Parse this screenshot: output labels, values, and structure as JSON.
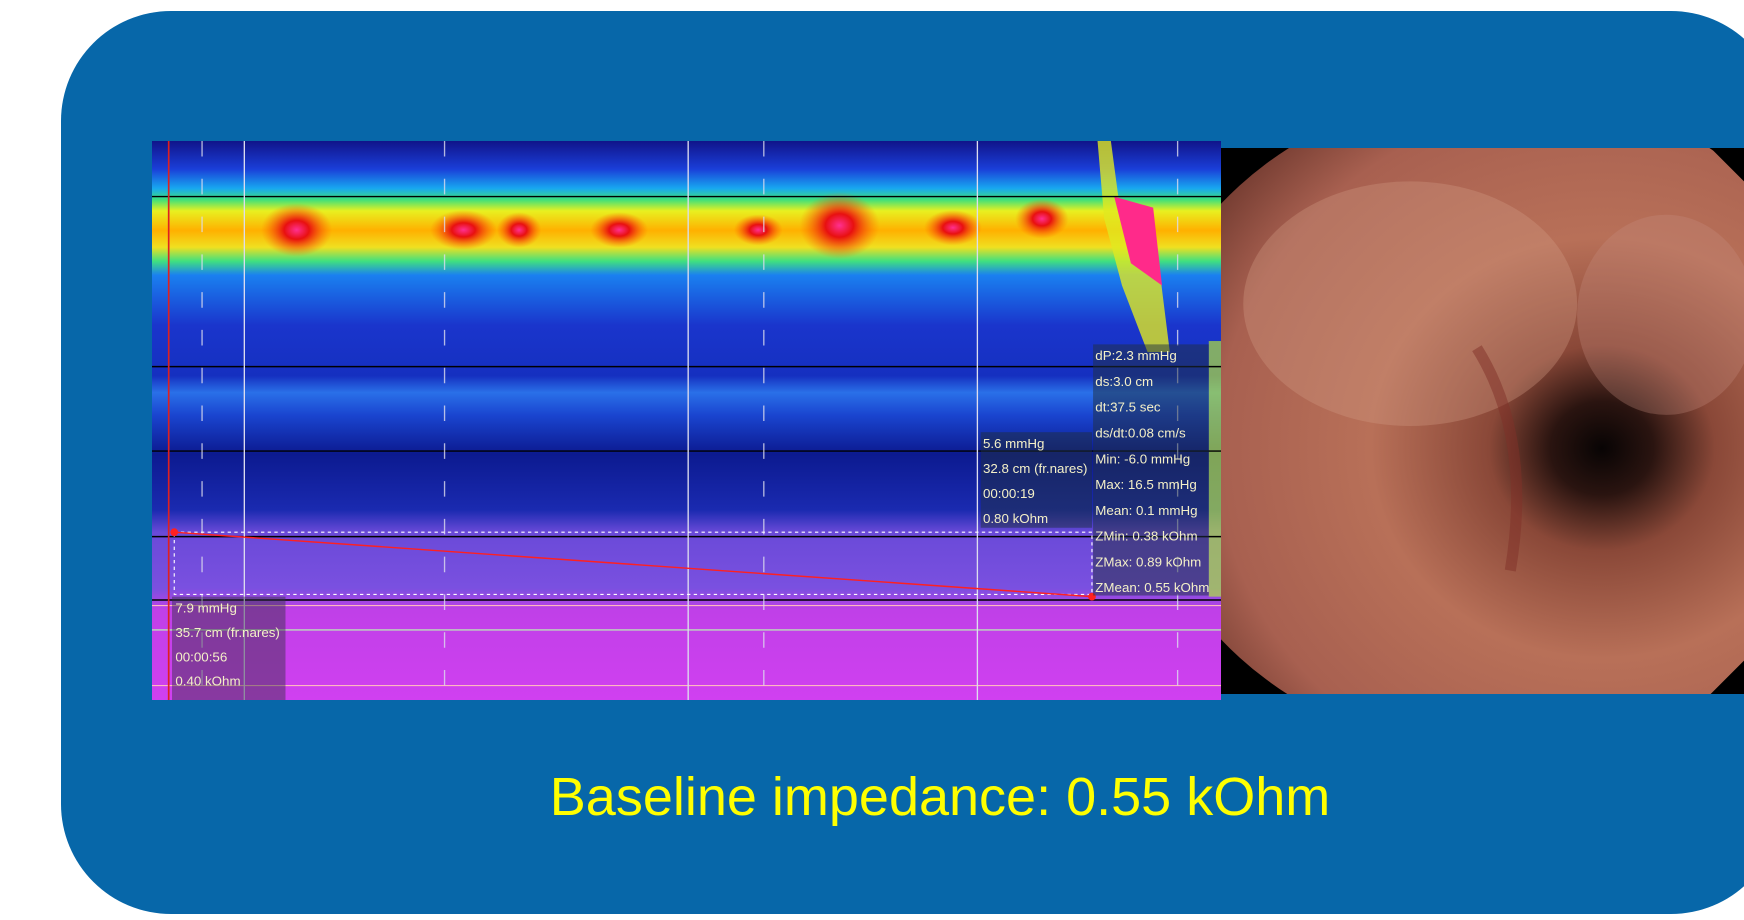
{
  "caption": "Baseline impedance: 0.55 kOhm",
  "manometry": {
    "cursor_start": [
      "7.9 mmHg",
      "35.7 cm (fr.nares)",
      "00:00:56",
      "0.40 kOhm"
    ],
    "cursor_end": [
      "5.6 mmHg",
      "32.8 cm (fr.nares)",
      "00:00:19",
      "0.80 kOhm"
    ],
    "measurements": [
      "dP:2.3 mmHg",
      "ds:3.0 cm",
      "dt:37.5 sec",
      "ds/dt:0.08 cm/s",
      "Min: -6.0 mmHg",
      "Max: 16.5 mmHg",
      "Mean: 0.1 mmHg",
      "ZMin: 0.38 kOhm",
      "ZMax: 0.89 kOhm",
      "ZMean: 0.55 kOhm"
    ]
  }
}
